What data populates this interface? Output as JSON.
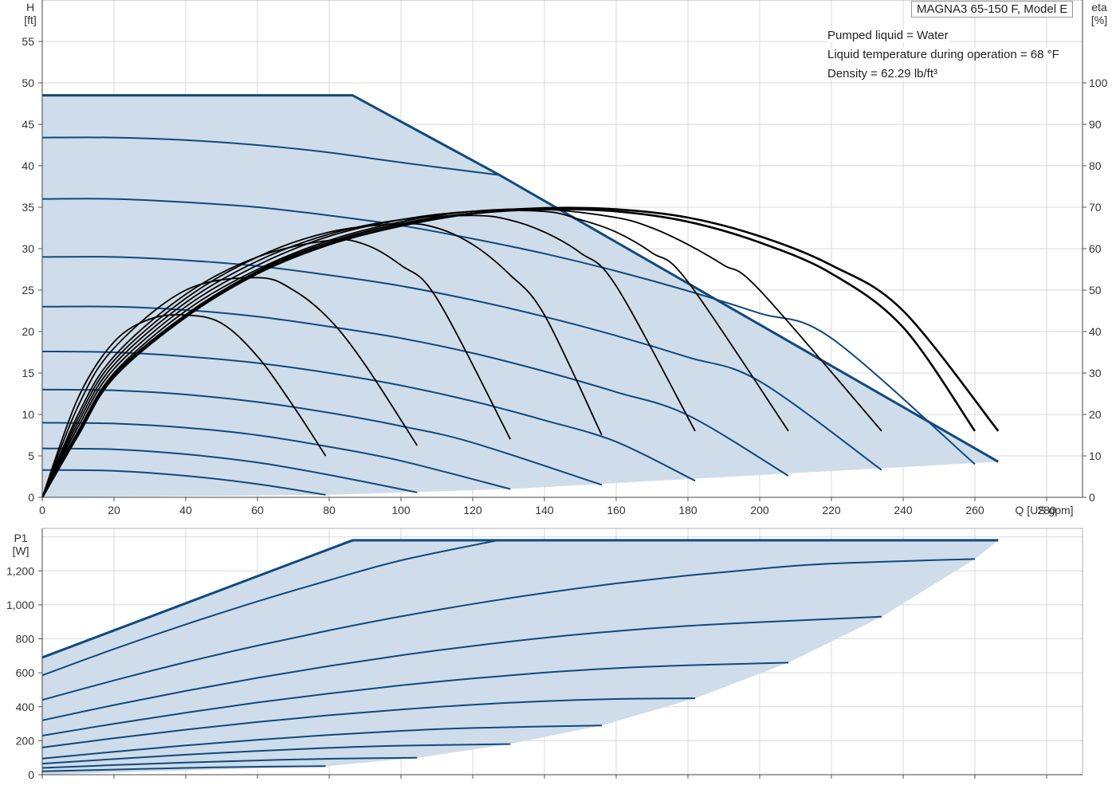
{
  "model_label": "MAGNA3 65-150 F, Model E",
  "info": {
    "liquid": "Pumped liquid = Water",
    "temperature": "Liquid temperature during operation = 68 °F",
    "density": "Density = 62.29 lb/ft³"
  },
  "colors": {
    "envelope_fill": "#cfdce9",
    "pump_curve": "#0e4a7e",
    "efficiency_curve": "#000000"
  },
  "chart_data": [
    {
      "type": "line",
      "title": "",
      "xlabel": "Q [US gpm]",
      "ylabel_left": "H\n[ft]",
      "ylabel_right": "eta\n[%]",
      "xlim": [
        0,
        290
      ],
      "ylim_left": [
        0,
        60
      ],
      "ylim_right": [
        0,
        120
      ],
      "x_ticks": [
        "0",
        "20",
        "40",
        "60",
        "80",
        "100",
        "120",
        "140",
        "160",
        "180",
        "200",
        "220",
        "240",
        "260",
        "280"
      ],
      "y_ticks_left": [
        "0",
        "5",
        "10",
        "15",
        "20",
        "25",
        "30",
        "35",
        "40",
        "45",
        "50",
        "55"
      ],
      "y_ticks_right": [
        "0",
        "10",
        "20",
        "30",
        "40",
        "50",
        "60",
        "70",
        "80",
        "90",
        "100"
      ],
      "grid": true,
      "envelope": {
        "x": [
          0,
          86.5,
          127,
          266.5,
          266.5,
          130,
          80,
          0
        ],
        "y": [
          48.5,
          48.5,
          39.0,
          4.3,
          4.3,
          1.0,
          0.3,
          0
        ]
      },
      "head_curves": [
        {
          "x": [
            0,
            20,
            40,
            60,
            79
          ],
          "y": [
            3.3,
            3.2,
            2.6,
            1.6,
            0.3
          ]
        },
        {
          "x": [
            0,
            20,
            40,
            60,
            80,
            104.5
          ],
          "y": [
            5.9,
            5.8,
            5.2,
            4.2,
            2.7,
            0.6
          ]
        },
        {
          "x": [
            0,
            20,
            40,
            60,
            80,
            100,
            130.5
          ],
          "y": [
            9.0,
            8.9,
            8.4,
            7.5,
            6.1,
            4.4,
            1.0
          ]
        },
        {
          "x": [
            0,
            20,
            40,
            60,
            80,
            100,
            120,
            156
          ],
          "y": [
            13.0,
            12.9,
            12.4,
            11.5,
            10.2,
            8.6,
            6.6,
            1.5
          ]
        },
        {
          "x": [
            0,
            20,
            40,
            60,
            80,
            100,
            120,
            140,
            160,
            182
          ],
          "y": [
            17.6,
            17.5,
            17.0,
            16.2,
            15.0,
            13.5,
            11.6,
            9.3,
            6.7,
            2.0
          ]
        },
        {
          "x": [
            0,
            20,
            40,
            60,
            80,
            100,
            120,
            140,
            160,
            180,
            208
          ],
          "y": [
            23.0,
            23.0,
            22.6,
            21.8,
            20.6,
            19.2,
            17.4,
            15.2,
            12.7,
            9.9,
            2.6
          ]
        },
        {
          "x": [
            0,
            20,
            40,
            60,
            80,
            100,
            120,
            140,
            160,
            180,
            200,
            234
          ],
          "y": [
            29.0,
            29.0,
            28.6,
            27.9,
            26.8,
            25.5,
            23.8,
            21.8,
            19.5,
            16.9,
            14.0,
            3.3
          ]
        },
        {
          "x": [
            0,
            20,
            40,
            60,
            80,
            100,
            120,
            140,
            160,
            180,
            200,
            220,
            260
          ],
          "y": [
            36.0,
            36.0,
            35.6,
            35.0,
            34.0,
            32.8,
            31.2,
            29.4,
            27.3,
            24.9,
            22.2,
            19.2,
            4.0
          ]
        },
        {
          "x": [
            0,
            20,
            40,
            60,
            80,
            100,
            127
          ],
          "y": [
            43.4,
            43.4,
            43.1,
            42.5,
            41.6,
            40.4,
            38.9
          ]
        }
      ],
      "efficiency_curves": [
        {
          "x": [
            0,
            10,
            20,
            30,
            40,
            50,
            60,
            70,
            79
          ],
          "y": [
            0,
            24,
            37.5,
            43,
            44,
            42,
            34,
            22,
            10
          ]
        },
        {
          "x": [
            0,
            10,
            20,
            40,
            60,
            70,
            80,
            90,
            104.5
          ],
          "y": [
            0,
            22,
            36,
            50,
            53,
            50,
            43,
            32,
            12.5
          ]
        },
        {
          "x": [
            0,
            10,
            20,
            40,
            60,
            80,
            90,
            100,
            110,
            130.5
          ],
          "y": [
            0,
            20,
            34,
            49,
            58,
            62,
            61,
            56,
            48,
            14
          ]
        },
        {
          "x": [
            0,
            10,
            20,
            40,
            60,
            80,
            100,
            110,
            120,
            130,
            140,
            156
          ],
          "y": [
            0,
            19,
            33,
            48,
            58,
            64,
            66,
            65,
            61,
            54,
            44,
            15
          ]
        },
        {
          "x": [
            0,
            10,
            20,
            40,
            60,
            80,
            100,
            120,
            130,
            140,
            150,
            160,
            182
          ],
          "y": [
            0,
            18,
            32,
            47,
            57,
            63.5,
            67,
            68,
            67,
            64,
            59,
            51,
            16
          ]
        },
        {
          "x": [
            0,
            10,
            20,
            40,
            60,
            80,
            100,
            120,
            140,
            150,
            160,
            170,
            180,
            208
          ],
          "y": [
            0,
            17,
            31,
            46,
            56,
            63,
            67,
            69,
            69,
            67,
            64,
            59,
            52,
            16
          ]
        },
        {
          "x": [
            0,
            10,
            20,
            40,
            60,
            80,
            100,
            120,
            140,
            160,
            170,
            180,
            190,
            200,
            234
          ],
          "y": [
            0,
            16,
            30,
            45,
            55,
            62,
            66.5,
            69,
            69.5,
            67.5,
            65,
            61,
            56,
            50,
            16
          ]
        },
        {
          "x": [
            0,
            10,
            20,
            40,
            60,
            80,
            100,
            120,
            140,
            160,
            180,
            200,
            220,
            240,
            260
          ],
          "y": [
            0,
            15.5,
            29.5,
            44,
            54.5,
            61.5,
            66,
            68.5,
            69.5,
            69,
            66.5,
            61.5,
            54,
            41,
            16
          ]
        },
        {
          "x": [
            0,
            10,
            20,
            40,
            60,
            80,
            100,
            120,
            140,
            160,
            180,
            200,
            220,
            240,
            266.5
          ],
          "y": [
            0,
            15,
            29,
            43.5,
            54,
            61,
            65.5,
            68.5,
            69.8,
            69.5,
            67.5,
            63,
            56,
            45,
            16
          ]
        }
      ]
    },
    {
      "type": "line",
      "title": "",
      "xlabel": "",
      "ylabel": "P1\n[W]",
      "xlim": [
        0,
        290
      ],
      "ylim": [
        0,
        1450
      ],
      "y_ticks": [
        "0",
        "200",
        "400",
        "600",
        "800",
        "1,000",
        "1,200"
      ],
      "grid": true,
      "envelope": {
        "x": [
          0,
          86.5,
          266.5,
          260,
          234,
          208,
          182,
          156,
          130,
          104.5,
          79,
          0
        ],
        "y": [
          690,
          1380,
          1380,
          1270,
          930,
          660,
          450,
          290,
          180,
          100,
          50,
          0
        ]
      },
      "power_curves": [
        {
          "x": [
            0,
            20,
            40,
            60,
            79
          ],
          "y": [
            20,
            30,
            40,
            47,
            50
          ]
        },
        {
          "x": [
            0,
            20,
            40,
            60,
            80,
            104.5
          ],
          "y": [
            40,
            57,
            72,
            84,
            94,
            100
          ]
        },
        {
          "x": [
            0,
            20,
            40,
            60,
            80,
            100,
            130.5
          ],
          "y": [
            65,
            92,
            118,
            140,
            158,
            171,
            180
          ]
        },
        {
          "x": [
            0,
            20,
            40,
            60,
            80,
            100,
            120,
            156
          ],
          "y": [
            95,
            135,
            172,
            205,
            234,
            258,
            275,
            290
          ]
        },
        {
          "x": [
            0,
            20,
            40,
            60,
            80,
            100,
            120,
            140,
            160,
            182
          ],
          "y": [
            160,
            215,
            265,
            310,
            350,
            384,
            412,
            433,
            446,
            450
          ]
        },
        {
          "x": [
            0,
            20,
            40,
            60,
            80,
            100,
            120,
            140,
            160,
            180,
            208
          ],
          "y": [
            230,
            300,
            365,
            425,
            478,
            526,
            567,
            601,
            627,
            644,
            660
          ]
        },
        {
          "x": [
            0,
            20,
            40,
            60,
            80,
            100,
            120,
            140,
            160,
            180,
            200,
            234
          ],
          "y": [
            320,
            410,
            493,
            570,
            640,
            703,
            758,
            806,
            845,
            876,
            898,
            930
          ]
        },
        {
          "x": [
            0,
            20,
            40,
            60,
            80,
            100,
            120,
            140,
            160,
            180,
            200,
            220,
            260
          ],
          "y": [
            440,
            555,
            662,
            760,
            850,
            932,
            1005,
            1070,
            1126,
            1173,
            1212,
            1243,
            1270
          ]
        },
        {
          "x": [
            0,
            20,
            40,
            60,
            80,
            100,
            127
          ],
          "y": [
            585,
            740,
            885,
            1020,
            1145,
            1262,
            1380
          ]
        }
      ]
    }
  ]
}
